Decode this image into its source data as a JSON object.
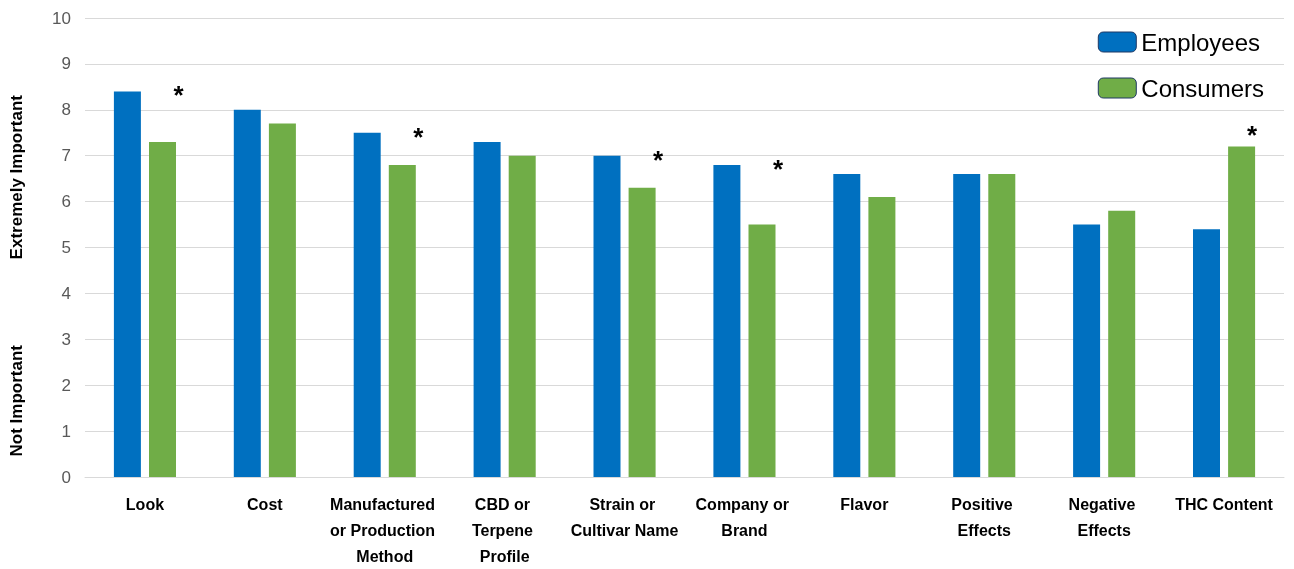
{
  "chart_data": {
    "type": "bar",
    "ylabel": "Extremely Important",
    "categories": [
      "Look",
      "Cost",
      "Manufactured or Production Method",
      "CBD or Terpene Profile",
      "Strain or Cultivar Name",
      "Company or Brand",
      "Flavor",
      "Positive Effects",
      "Negative Effects",
      "THC Content"
    ],
    "series": [
      {
        "name": "Employees",
        "color": "#0070c0",
        "values": [
          8.4,
          8.0,
          7.5,
          7.3,
          7.0,
          6.8,
          6.6,
          6.6,
          5.5,
          5.4
        ]
      },
      {
        "name": "Consumers",
        "color": "#70ad47",
        "values": [
          7.3,
          7.7,
          6.8,
          7.0,
          6.3,
          5.5,
          6.1,
          6.6,
          5.8,
          7.2
        ]
      }
    ],
    "ylim": [
      0,
      10
    ],
    "yticks": [
      0,
      1,
      2,
      3,
      4,
      5,
      6,
      7,
      8,
      9,
      10
    ],
    "grid": "y",
    "legend": "top right",
    "annotations": [
      "Not Important",
      {
        "text": "*",
        "x": "Look",
        "y": 8.4
      },
      {
        "text": "*",
        "x": "Manufactured or Production Method",
        "y": 7.5
      },
      {
        "text": "*",
        "x": "Strain or Cultivar Name",
        "y": 7.0
      },
      {
        "text": "*",
        "x": "Company or Brand",
        "y": 6.8
      },
      "*"
    ]
  }
}
